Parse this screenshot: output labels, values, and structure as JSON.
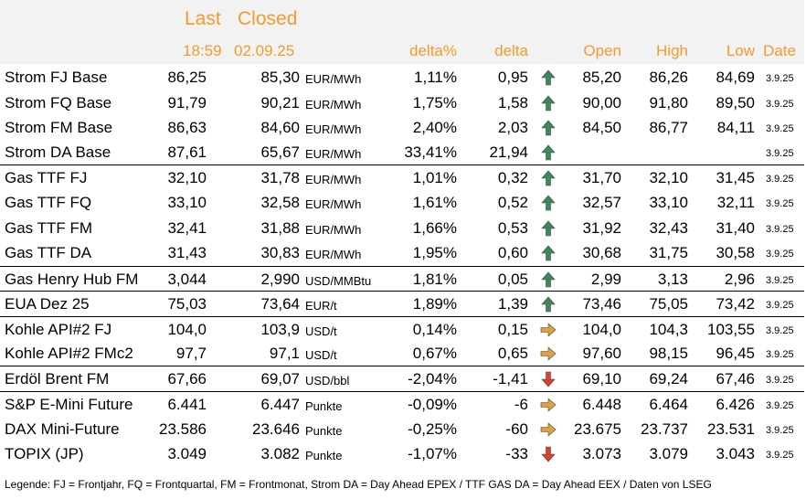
{
  "header": {
    "last": "Last",
    "closed": "Closed",
    "time": "18:59",
    "date": "02.09.25",
    "delta_pct": "delta%",
    "delta": "delta",
    "open": "Open",
    "high": "High",
    "low": "Low",
    "date_col": "Date"
  },
  "colors": {
    "header_text": "#f59a2c",
    "header_bg": "#f2f2f2",
    "arrow_up": "#3a8a5c",
    "arrow_side": "#e0a040",
    "arrow_down": "#d9412b"
  },
  "rows": [
    {
      "name": "Strom FJ Base",
      "last": "86,25",
      "closed": "85,30",
      "unit": "EUR/MWh",
      "pct": "1,11%",
      "delta": "0,95",
      "dir": "up",
      "open": "85,20",
      "high": "86,26",
      "low": "84,69",
      "date": "3.9.25"
    },
    {
      "name": "Strom FQ Base",
      "last": "91,79",
      "closed": "90,21",
      "unit": "EUR/MWh",
      "pct": "1,75%",
      "delta": "1,58",
      "dir": "up",
      "open": "90,00",
      "high": "91,80",
      "low": "89,50",
      "date": "3.9.25"
    },
    {
      "name": "Strom FM Base",
      "last": "86,63",
      "closed": "84,60",
      "unit": "EUR/MWh",
      "pct": "2,40%",
      "delta": "2,03",
      "dir": "up",
      "open": "84,50",
      "high": "86,77",
      "low": "84,11",
      "date": "3.9.25"
    },
    {
      "name": "Strom DA Base",
      "last": "87,61",
      "closed": "65,67",
      "unit": "EUR/MWh",
      "pct": "33,41%",
      "delta": "21,94",
      "dir": "up",
      "open": "",
      "high": "",
      "low": "",
      "date": "3.9.25"
    },
    {
      "name": "Gas TTF FJ",
      "last": "32,10",
      "closed": "31,78",
      "unit": "EUR/MWh",
      "pct": "1,01%",
      "delta": "0,32",
      "dir": "up",
      "open": "31,70",
      "high": "32,10",
      "low": "31,45",
      "date": "3.9.25"
    },
    {
      "name": "Gas TTF FQ",
      "last": "33,10",
      "closed": "32,58",
      "unit": "EUR/MWh",
      "pct": "1,61%",
      "delta": "0,52",
      "dir": "up",
      "open": "32,57",
      "high": "33,10",
      "low": "32,11",
      "date": "3.9.25"
    },
    {
      "name": "Gas TTF FM",
      "last": "32,41",
      "closed": "31,88",
      "unit": "EUR/MWh",
      "pct": "1,66%",
      "delta": "0,53",
      "dir": "up",
      "open": "31,92",
      "high": "32,43",
      "low": "31,40",
      "date": "3.9.25"
    },
    {
      "name": "Gas TTF DA",
      "last": "31,43",
      "closed": "30,83",
      "unit": "EUR/MWh",
      "pct": "1,95%",
      "delta": "0,60",
      "dir": "up",
      "open": "30,68",
      "high": "31,75",
      "low": "30,58",
      "date": "3.9.25"
    },
    {
      "name": "Gas Henry Hub FM",
      "last": "3,044",
      "closed": "2,990",
      "unit": "USD/MMBtu",
      "pct": "1,81%",
      "delta": "0,05",
      "dir": "up",
      "open": "2,99",
      "high": "3,13",
      "low": "2,96",
      "date": "3.9.25"
    },
    {
      "name": "EUA Dez 25",
      "last": "75,03",
      "closed": "73,64",
      "unit": "EUR/t",
      "pct": "1,89%",
      "delta": "1,39",
      "dir": "up",
      "open": "73,46",
      "high": "75,05",
      "low": "73,42",
      "date": "3.9.25"
    },
    {
      "name": "Kohle API#2 FJ",
      "last": "104,0",
      "closed": "103,9",
      "unit": "USD/t",
      "pct": "0,14%",
      "delta": "0,15",
      "dir": "side",
      "open": "104,0",
      "high": "104,3",
      "low": "103,55",
      "date": "3.9.25"
    },
    {
      "name": "Kohle API#2 FMc2",
      "last": "97,7",
      "closed": "97,1",
      "unit": "USD/t",
      "pct": "0,67%",
      "delta": "0,65",
      "dir": "side",
      "open": "97,60",
      "high": "98,15",
      "low": "96,45",
      "date": "3.9.25"
    },
    {
      "name": "Erdöl Brent FM",
      "last": "67,66",
      "closed": "69,07",
      "unit": "USD/bbl",
      "pct": "-2,04%",
      "delta": "-1,41",
      "dir": "down",
      "open": "69,10",
      "high": "69,24",
      "low": "67,46",
      "date": "3.9.25"
    },
    {
      "name": "S&P E-Mini Future",
      "last": "6.441",
      "closed": "6.447",
      "unit": "Punkte",
      "pct": "-0,09%",
      "delta": "-6",
      "dir": "side",
      "open": "6.448",
      "high": "6.464",
      "low": "6.426",
      "date": "3.9.25"
    },
    {
      "name": "DAX Mini-Future",
      "last": "23.586",
      "closed": "23.646",
      "unit": "Punkte",
      "pct": "-0,25%",
      "delta": "-60",
      "dir": "side",
      "open": "23.675",
      "high": "23.737",
      "low": "23.531",
      "date": "3.9.25"
    },
    {
      "name": "TOPIX (JP)",
      "last": "3.049",
      "closed": "3.082",
      "unit": "Punkte",
      "pct": "-1,07%",
      "delta": "-33",
      "dir": "down",
      "open": "3.073",
      "high": "3.079",
      "low": "3.043",
      "date": "3.9.25"
    }
  ],
  "legend": "Legende: FJ = Frontjahr, FQ = Frontquartal, FM = Frontmonat, Strom DA = Day Ahead EPEX / TTF GAS DA = Day Ahead EEX / Daten von LSEG"
}
